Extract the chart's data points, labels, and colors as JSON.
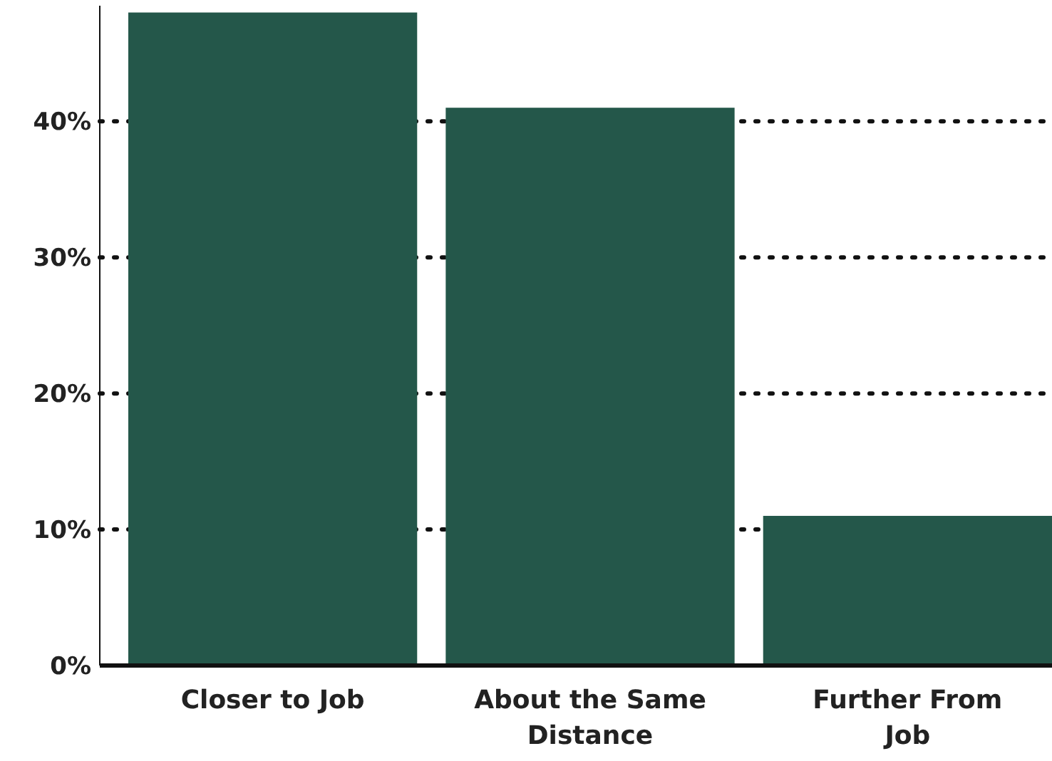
{
  "chart_data": {
    "type": "bar",
    "categories": [
      "Closer to Job",
      "About the Same Distance",
      "Further From Job"
    ],
    "values": [
      48,
      41,
      11
    ],
    "color": "#24574a",
    "ylim": [
      0,
      48.5
    ],
    "yticks": [
      {
        "value": 0,
        "label": "0%"
      },
      {
        "value": 10,
        "label": "10%"
      },
      {
        "value": 20,
        "label": "20%"
      },
      {
        "value": 30,
        "label": "30%"
      },
      {
        "value": 40,
        "label": "40%"
      }
    ],
    "grid": "y"
  }
}
